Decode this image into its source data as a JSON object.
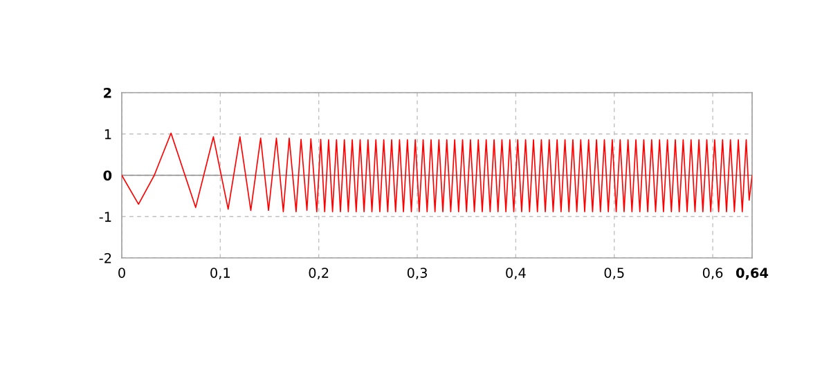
{
  "chart_data": {
    "type": "line",
    "xlim": [
      0,
      0.64
    ],
    "ylim": [
      -2,
      2
    ],
    "xticks": [
      0,
      {
        "value": 0.1,
        "label": "0,1"
      },
      {
        "value": 0.2,
        "label": "0,2"
      },
      {
        "value": 0.3,
        "label": "0,3"
      },
      {
        "value": 0.4,
        "label": "0,4"
      },
      {
        "value": 0.5,
        "label": "0,5"
      },
      {
        "value": 0.6,
        "label": "0,6"
      },
      {
        "value": 0.64,
        "label": "0,64"
      }
    ],
    "yticks": [
      -2,
      -1,
      0,
      1,
      2
    ],
    "grid": true,
    "ref_lines": [
      {
        "axis": "y",
        "value": 0,
        "label": null,
        "color": "#8c8c8c",
        "line_style": "solid"
      }
    ],
    "series": [
      {
        "color": "#ff0000",
        "x": [
          0,
          0.017,
          0.033,
          0.05,
          0.075,
          0.093,
          0.108,
          0.12,
          0.131,
          0.141,
          0.149,
          0.157,
          0.164,
          0.17,
          0.177,
          0.182,
          0.188,
          0.192,
          0.198,
          0.202,
          0.206,
          0.21,
          0.214,
          0.218,
          0.222,
          0.226,
          0.23,
          0.234,
          0.238,
          0.242,
          0.246,
          0.25,
          0.254,
          0.258,
          0.262,
          0.266,
          0.27,
          0.274,
          0.278,
          0.282,
          0.286,
          0.29,
          0.294,
          0.298,
          0.302,
          0.306,
          0.31,
          0.314,
          0.318,
          0.322,
          0.326,
          0.33,
          0.334,
          0.338,
          0.342,
          0.346,
          0.35,
          0.354,
          0.358,
          0.362,
          0.366,
          0.37,
          0.374,
          0.378,
          0.382,
          0.386,
          0.39,
          0.394,
          0.398,
          0.402,
          0.406,
          0.41,
          0.414,
          0.418,
          0.422,
          0.426,
          0.43,
          0.434,
          0.438,
          0.442,
          0.446,
          0.45,
          0.454,
          0.458,
          0.462,
          0.466,
          0.47,
          0.474,
          0.478,
          0.482,
          0.486,
          0.49,
          0.494,
          0.498,
          0.502,
          0.506,
          0.51,
          0.514,
          0.518,
          0.522,
          0.526,
          0.53,
          0.534,
          0.538,
          0.542,
          0.546,
          0.55,
          0.554,
          0.558,
          0.562,
          0.566,
          0.57,
          0.574,
          0.578,
          0.582,
          0.586,
          0.59,
          0.594,
          0.598,
          0.602,
          0.606,
          0.61,
          0.614,
          0.618,
          0.622,
          0.626,
          0.63,
          0.634,
          0.637,
          0.64
        ],
        "values": [
          0,
          -0.7,
          0,
          1.02,
          -0.78,
          0.93,
          -0.82,
          0.93,
          -0.85,
          0.9,
          -0.85,
          0.9,
          -0.88,
          0.9,
          -0.88,
          0.87,
          -0.85,
          0.88,
          -0.88,
          0.87,
          -0.88,
          0.86,
          -0.88,
          0.86,
          -0.88,
          0.86,
          -0.88,
          0.86,
          -0.88,
          0.86,
          -0.88,
          0.86,
          -0.88,
          0.86,
          -0.88,
          0.86,
          -0.88,
          0.86,
          -0.88,
          0.86,
          -0.88,
          0.86,
          -0.88,
          0.86,
          -0.88,
          0.86,
          -0.88,
          0.86,
          -0.88,
          0.86,
          -0.88,
          0.86,
          -0.88,
          0.86,
          -0.88,
          0.86,
          -0.88,
          0.86,
          -0.88,
          0.86,
          -0.88,
          0.86,
          -0.88,
          0.86,
          -0.88,
          0.86,
          -0.88,
          0.86,
          -0.88,
          0.86,
          -0.88,
          0.86,
          -0.88,
          0.86,
          -0.88,
          0.86,
          -0.88,
          0.86,
          -0.88,
          0.86,
          -0.88,
          0.86,
          -0.88,
          0.86,
          -0.88,
          0.86,
          -0.88,
          0.86,
          -0.88,
          0.86,
          -0.88,
          0.86,
          -0.88,
          0.86,
          -0.88,
          0.86,
          -0.88,
          0.86,
          -0.88,
          0.86,
          -0.88,
          0.86,
          -0.88,
          0.86,
          -0.88,
          0.86,
          -0.88,
          0.86,
          -0.88,
          0.86,
          -0.88,
          0.86,
          -0.88,
          0.86,
          -0.88,
          0.86,
          -0.88,
          0.86,
          -0.88,
          0.86,
          -0.88,
          0.86,
          -0.88,
          0.86,
          -0.88,
          0.86,
          -0.88,
          0.86,
          -0.6,
          0
        ]
      }
    ]
  }
}
